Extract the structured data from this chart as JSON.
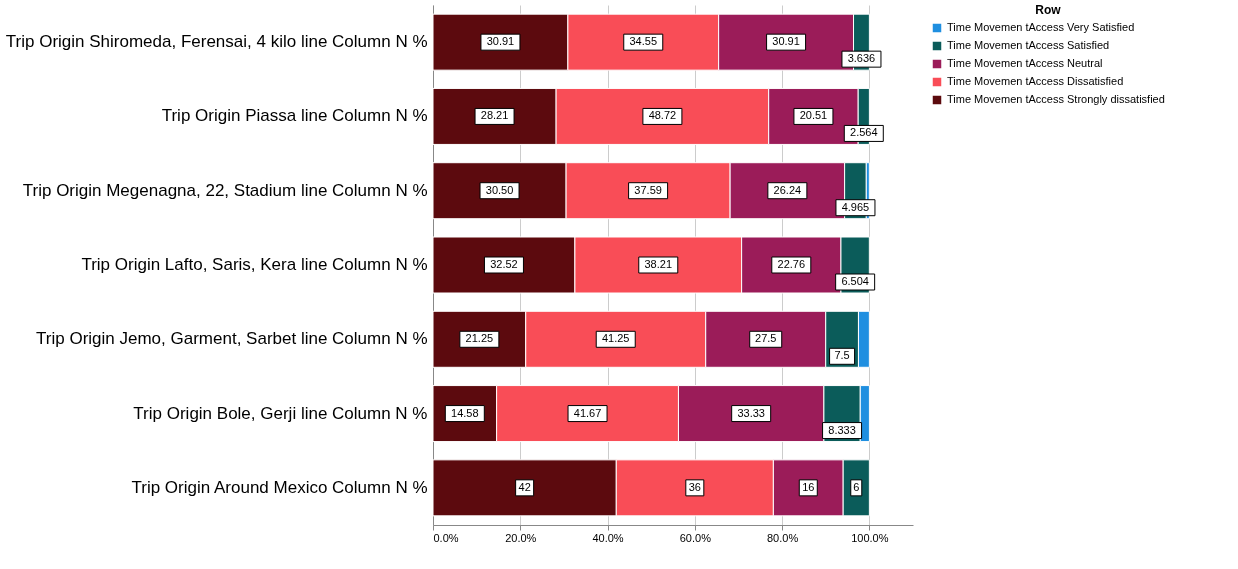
{
  "chart_data": {
    "type": "bar",
    "orientation": "horizontal",
    "stacked": true,
    "legend_title": "Row",
    "legend": "top right",
    "grid": "x",
    "categories": [
      "Trip Origin Shiromeda, Ferensai, 4 kilo line Column N %",
      "Trip Origin Piassa line Column N %",
      "Trip Origin Megenagna, 22, Stadium line Column N %",
      "Trip Origin Lafto, Saris, Kera line Column N %",
      "Trip Origin Jemo, Garment, Sarbet line Column N %",
      "Trip Origin Bole, Gerji line Column N %",
      "Trip Origin Around Mexico Column N %"
    ],
    "xlim": [
      0,
      110
    ],
    "xticks": [
      {
        "value": 0,
        "label": "0.0%"
      },
      {
        "value": 20,
        "label": "20.0%"
      },
      {
        "value": 40,
        "label": "40.0%"
      },
      {
        "value": 60,
        "label": "60.0%"
      },
      {
        "value": 80,
        "label": "80.0%"
      },
      {
        "value": 100,
        "label": "100.0%"
      }
    ],
    "series": [
      {
        "name": "Time Movemen tAccess Strongly dissatisfied",
        "color": "#5c0a0e",
        "values": [
          30.91,
          28.21,
          30.5,
          32.52,
          21.25,
          14.58,
          42
        ],
        "value_labels": [
          "30.91",
          "28.21",
          "30.50",
          "32.52",
          "21.25",
          "14.58",
          "42"
        ]
      },
      {
        "name": "Time Movemen tAccess Dissatisfied",
        "color": "#f94d57",
        "values": [
          34.55,
          48.72,
          37.59,
          38.21,
          41.25,
          41.67,
          36
        ],
        "value_labels": [
          "34.55",
          "48.72",
          "37.59",
          "38.21",
          "41.25",
          "41.67",
          "36"
        ]
      },
      {
        "name": "Time Movemen tAccess Neutral",
        "color": "#9b1c59",
        "values": [
          30.91,
          20.51,
          26.24,
          22.76,
          27.5,
          33.33,
          16
        ],
        "value_labels": [
          "30.91",
          "20.51",
          "26.24",
          "22.76",
          "27.5",
          "33.33",
          "16"
        ]
      },
      {
        "name": "Time Movemen tAccess Satisfied",
        "color": "#0b5c5a",
        "values": [
          3.636,
          2.564,
          4.965,
          6.504,
          7.5,
          8.333,
          6
        ],
        "value_labels": [
          "3.636",
          "2.564",
          "4.965",
          "6.504",
          "7.5",
          "8.333",
          "6"
        ]
      },
      {
        "name": "Time Movemen tAccess Very Satisfied",
        "color": "#1f8fe0",
        "values": [
          null,
          null,
          0.7,
          null,
          2.5,
          2.1,
          null
        ],
        "value_labels": [
          null,
          null,
          null,
          null,
          null,
          null,
          null
        ]
      }
    ]
  }
}
